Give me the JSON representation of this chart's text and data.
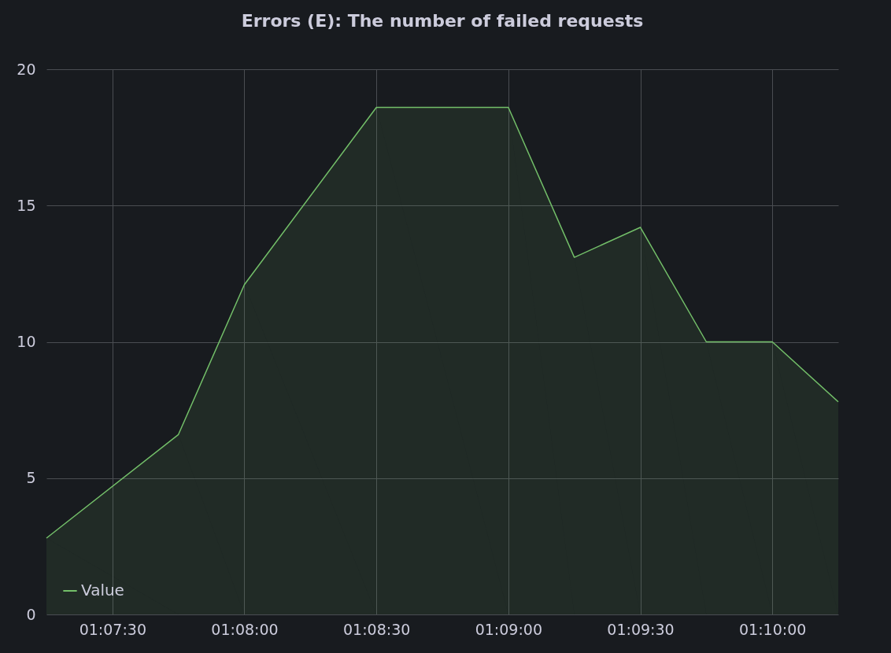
{
  "chart_data": {
    "type": "area",
    "title": "Errors (E): The number of failed requests",
    "x": [
      1.120833,
      1.129167,
      1.133333,
      1.141667,
      1.15,
      1.154167,
      1.158333,
      1.1625,
      1.166667,
      1.170833
    ],
    "series": [
      {
        "name": "Value",
        "color": "#73bf69",
        "values": [
          2.8,
          6.6,
          12.1,
          18.6,
          18.6,
          13.1,
          14.2,
          10,
          10,
          7.8
        ]
      }
    ],
    "xlim": [
      1.120833,
      1.170833
    ],
    "xticks": [
      {
        "value": 1.125,
        "label": "01:07:30"
      },
      {
        "value": 1.133333,
        "label": "01:08:00"
      },
      {
        "value": 1.141667,
        "label": "01:08:30"
      },
      {
        "value": 1.15,
        "label": "01:09:00"
      },
      {
        "value": 1.158333,
        "label": "01:09:30"
      },
      {
        "value": 1.166667,
        "label": "01:10:00"
      }
    ],
    "ylim": [
      0,
      20
    ],
    "yticks": [
      0,
      5,
      10,
      15,
      20
    ],
    "grid": true,
    "legend": "bottom left"
  }
}
